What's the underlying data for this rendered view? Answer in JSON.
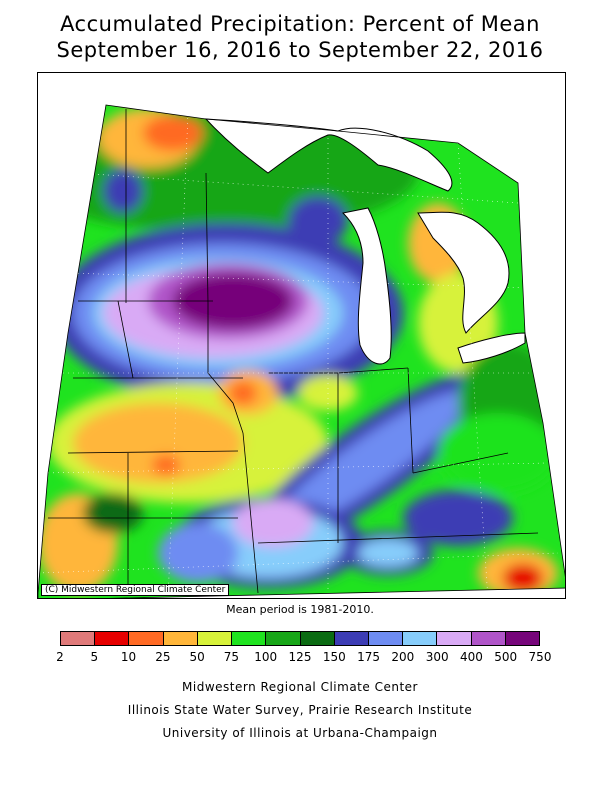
{
  "title_line1": "Accumulated Precipitation: Percent of Mean",
  "title_line2": "September 16, 2016 to September 22, 2016",
  "copyright": "(C) Midwestern Regional Climate Center",
  "mean_period": "Mean period is 1981-2010.",
  "legend": {
    "colors": [
      "#e07a7a",
      "#e60000",
      "#ff6a24",
      "#ffb63a",
      "#d7f23a",
      "#1fe31f",
      "#18a618",
      "#0b6b12",
      "#3c3cb4",
      "#6e8cf2",
      "#87cdfb",
      "#d9aaf5",
      "#b055c9",
      "#76057a"
    ],
    "labels": [
      "2",
      "5",
      "10",
      "25",
      "50",
      "75",
      "100",
      "125",
      "150",
      "175",
      "200",
      "300",
      "400",
      "500",
      "750"
    ]
  },
  "credits": [
    "Midwestern Regional Climate Center",
    "Illinois State Water Survey, Prairie Research Institute",
    "University of Illinois at Urbana-Champaign"
  ],
  "map": {
    "lake_color": "#ffffff",
    "outside_color": "#ffffff",
    "border_color": "#000000"
  }
}
